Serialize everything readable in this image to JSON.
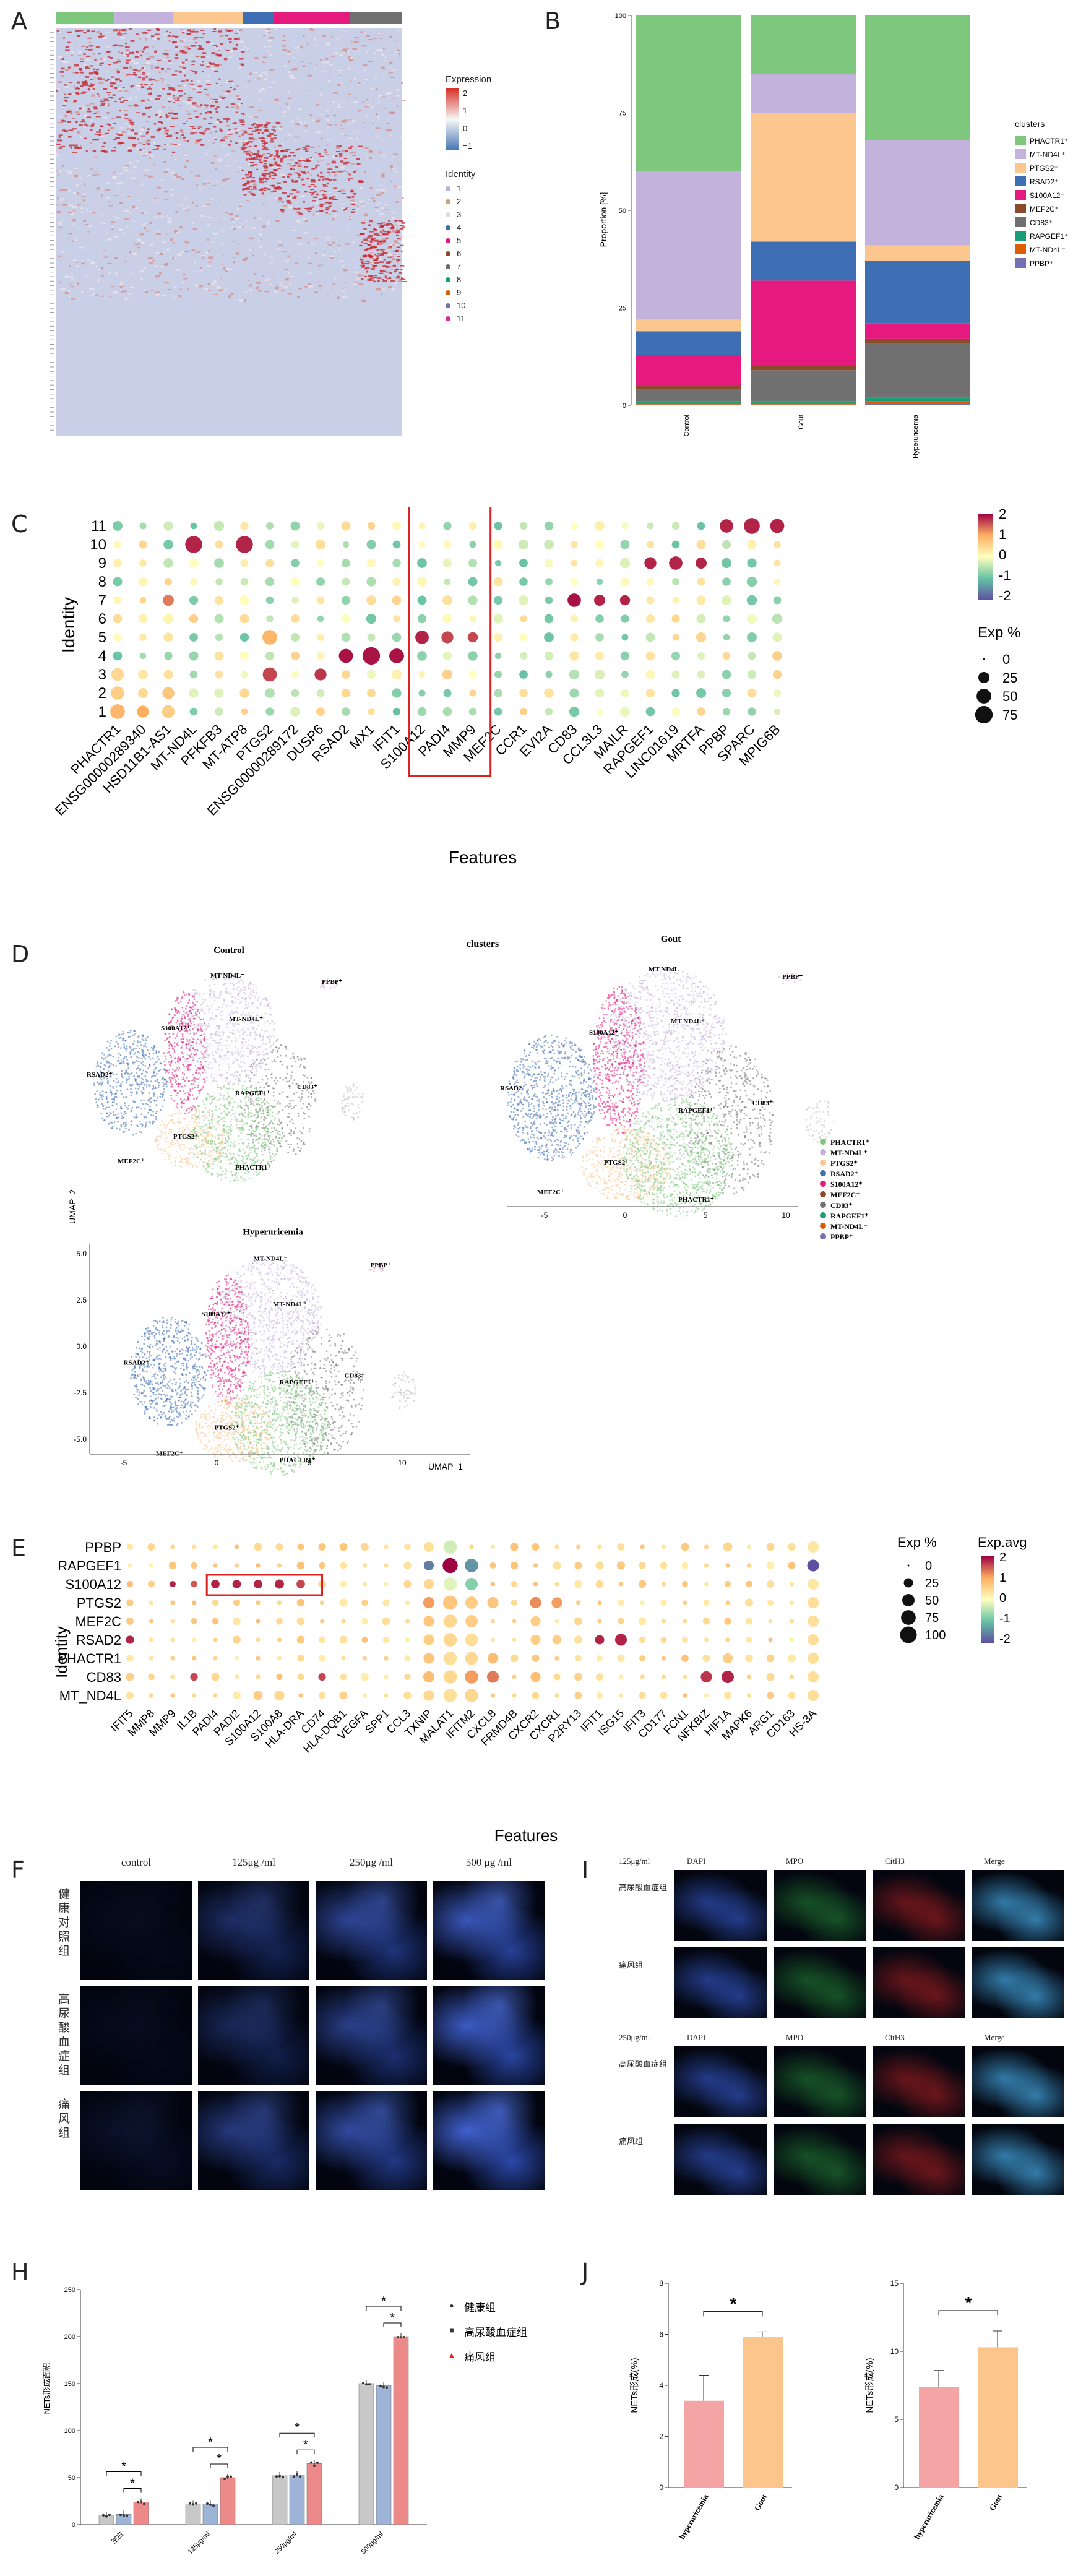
{
  "panel_labels": [
    "A",
    "B",
    "C",
    "D",
    "E",
    "F",
    "I",
    "H",
    "J"
  ],
  "colors": {
    "PHACTR1": "#7ec87e",
    "MT-ND4L": "#c3b3dc",
    "PTGS2": "#fbc78e",
    "RSAD2": "#3e6fb5",
    "S100A12": "#e6197e",
    "MEF2C": "#8b4a2a",
    "CD83": "#707070",
    "RAPGEF1": "#1b9e77",
    "MT-ND4L2": "#d95f02",
    "PPBP": "#7570b3"
  },
  "panelA": {
    "legend_title_expr": "Expression",
    "expr_ticks": [
      "2",
      "1",
      "0",
      "−1"
    ],
    "legend_title_identity": "Identity",
    "identity": [
      "1",
      "2",
      "3",
      "4",
      "5",
      "6",
      "7",
      "8",
      "9",
      "10",
      "11"
    ],
    "identity_colors": [
      "#b3b3d9",
      "#c9a27a",
      "#dddddd",
      "#3e6fb5",
      "#e6197e",
      "#8b4a2a",
      "#707070",
      "#1b9e77",
      "#d95f02",
      "#7570b3",
      "#e7298a"
    ],
    "top_bar": [
      "#7ec87e",
      "#c3b3dc",
      "#fbc78e",
      "#3e6fb5",
      "#e6197e",
      "#707070"
    ]
  },
  "panelB": {
    "ylabel": "Proportion [%]",
    "ticks": [
      "0",
      "25",
      "50",
      "75",
      "100"
    ],
    "legend_title": "clusters",
    "legend": [
      "PHACTR1⁺",
      "MT-ND4L⁺",
      "PTGS2⁺",
      "RSAD2⁺",
      "S100A12⁺",
      "MEF2C⁺",
      "CD83⁺",
      "RAPGEF1⁺",
      "MT-ND4L⁻",
      "PPBP⁺"
    ],
    "chart_data": {
      "type": "bar",
      "stacked": true,
      "categories": [
        "Control",
        "Gout",
        "Hyperuricemia"
      ],
      "series": [
        {
          "name": "PHACTR1⁺",
          "values": [
            40,
            15,
            32
          ]
        },
        {
          "name": "MT-ND4L⁺",
          "values": [
            38,
            10,
            27
          ]
        },
        {
          "name": "PTGS2⁺",
          "values": [
            3,
            33,
            4
          ]
        },
        {
          "name": "RSAD2⁺",
          "values": [
            6,
            10,
            16
          ]
        },
        {
          "name": "S100A12⁺",
          "values": [
            8,
            22,
            4
          ]
        },
        {
          "name": "MEF2C⁺",
          "values": [
            1,
            1,
            1
          ]
        },
        {
          "name": "CD83⁺",
          "values": [
            3,
            8,
            14
          ]
        },
        {
          "name": "RAPGEF1⁺",
          "values": [
            0.5,
            0.5,
            1
          ]
        },
        {
          "name": "MT-ND4L⁻",
          "values": [
            0.3,
            0.3,
            0.5
          ]
        },
        {
          "name": "PPBP⁺",
          "values": [
            0.2,
            0.2,
            0.5
          ]
        }
      ],
      "ylim": [
        0,
        100
      ]
    }
  },
  "panelC": {
    "ylabel": "Identity",
    "xlabel": "Features",
    "legend_title": "Exp %",
    "size_ticks": [
      "0",
      "25",
      "50",
      "75"
    ],
    "color_ticks": [
      "2",
      "1",
      "0",
      "-1",
      "-2"
    ],
    "identities": [
      "11",
      "10",
      "9",
      "8",
      "7",
      "6",
      "5",
      "4",
      "3",
      "2",
      "1"
    ],
    "features": [
      "PHACTR1",
      "ENSG00000289340",
      "HSD11B1-AS1",
      "MT-ND4L",
      "PFKFB3",
      "MT-ATP8",
      "PTGS2",
      "ENSG00000289172",
      "DUSP6",
      "RSAD2",
      "MX1",
      "IFIT1",
      "S100A12",
      "PADI4",
      "MMP9",
      "MEF2C",
      "CCR1",
      "EVI2A",
      "CD83",
      "CCL3L3",
      "MAILR",
      "RAPGEF1",
      "LINC01619",
      "MRTFA",
      "PPBP",
      "SPARC",
      "MPIG6B"
    ]
  },
  "panelD": {
    "title": "clusters",
    "subtitles": [
      "Control",
      "Gout",
      "Hyperuricemia"
    ],
    "xlabel": "UMAP_1",
    "ylabel": "UMAP_2",
    "yticks": [
      "5.0",
      "2.5",
      "0.0",
      "-2.5",
      "-5.0"
    ],
    "xticks": [
      "-5",
      "0",
      "5",
      "10"
    ],
    "cluster_labels": [
      "MT-ND4L⁻",
      "PPBP⁺",
      "MT-ND4L⁺",
      "S100A12⁺",
      "RSAD2⁺",
      "RAPGEF1⁺",
      "CD83⁺",
      "PTGS2⁺",
      "MEF2C⁺",
      "PHACTR1⁺"
    ],
    "legend": [
      "PHACTR1⁺",
      "MT-ND4L⁺",
      "PTGS2⁺",
      "RSAD2⁺",
      "S100A12⁺",
      "MEF2C⁺",
      "CD83⁺",
      "RAPGEF1⁺",
      "MT-ND4L⁻",
      "PPBP⁺"
    ]
  },
  "panelE": {
    "ylabel": "Identity",
    "xlabel": "Features",
    "rows": [
      "PPBP",
      "RAPGEF1",
      "S100A12",
      "PTGS2",
      "MEF2C",
      "RSAD2",
      "PHACTR1",
      "CD83",
      "MT_ND4L"
    ],
    "features": [
      "IFIT5",
      "MMP8",
      "MMP9",
      "IL1B",
      "PADI4",
      "PADI2",
      "S100A12",
      "S100A8",
      "HLA-DRA",
      "CD74",
      "HLA-DQB1",
      "VEGFA",
      "SPP1",
      "CCL3",
      "TXNIP",
      "MALAT1",
      "IFITM2",
      "CXCL8",
      "FRMD4B",
      "CXCR2",
      "CXCR1",
      "P2RY13",
      "IFIT1",
      "ISG15",
      "IFIT3",
      "CD177",
      "FCN1",
      "NFKBIZ",
      "HIF1A",
      "MAPK6",
      "ARG1",
      "CD163",
      "HS-3A"
    ],
    "size_title": "Exp %",
    "size_ticks": [
      "0",
      "25",
      "50",
      "75",
      "100"
    ],
    "color_title": "Exp.avg",
    "color_ticks": [
      "2",
      "1",
      "0",
      "-1",
      "-2"
    ]
  },
  "panelF": {
    "columns": [
      "control",
      "125μg /ml",
      "250μg /ml",
      "500 μg /ml"
    ],
    "rows": [
      "健康对照组",
      "高尿酸血症组",
      "痛风组"
    ]
  },
  "panelI": {
    "block1_title": "125μg/ml",
    "block2_title": "250μg/ml",
    "columns": [
      "DAPI",
      "MPO",
      "CitH3",
      "Merge"
    ],
    "rows": [
      "高尿酸血症组",
      "痛风组"
    ]
  },
  "panelH": {
    "ylabel": "NETs形成面积",
    "legend": [
      "健康组",
      "高尿酸血症组",
      "痛风组"
    ],
    "sig": "*",
    "chart_data": {
      "type": "bar",
      "categories": [
        "空白",
        "125μg/ml",
        "250μg/ml",
        "500μg/ml"
      ],
      "series": [
        {
          "name": "健康组",
          "values": [
            10,
            22,
            52,
            150
          ]
        },
        {
          "name": "高尿酸血症组",
          "values": [
            11,
            22,
            53,
            148
          ]
        },
        {
          "name": "痛风组",
          "values": [
            24,
            50,
            65,
            200
          ]
        }
      ],
      "ylim": [
        0,
        250
      ]
    }
  },
  "panelJ": {
    "ylabel": "NETs形成(%)",
    "sig": "*",
    "categories": [
      "hyperuricemia",
      "Gout"
    ],
    "chart_data": [
      {
        "type": "bar",
        "categories": [
          "hyperuricemia",
          "Gout"
        ],
        "values": [
          3.4,
          5.9
        ],
        "errors": [
          1.0,
          0.2
        ],
        "ylim": [
          0,
          8
        ],
        "yticks": [
          "0",
          "2",
          "4",
          "6",
          "8"
        ]
      },
      {
        "type": "bar",
        "categories": [
          "hyperuricemia",
          "Gout"
        ],
        "values": [
          7.4,
          10.3
        ],
        "errors": [
          1.2,
          1.2
        ],
        "ylim": [
          0,
          15
        ],
        "yticks": [
          "0",
          "5",
          "10",
          "15"
        ]
      }
    ]
  }
}
